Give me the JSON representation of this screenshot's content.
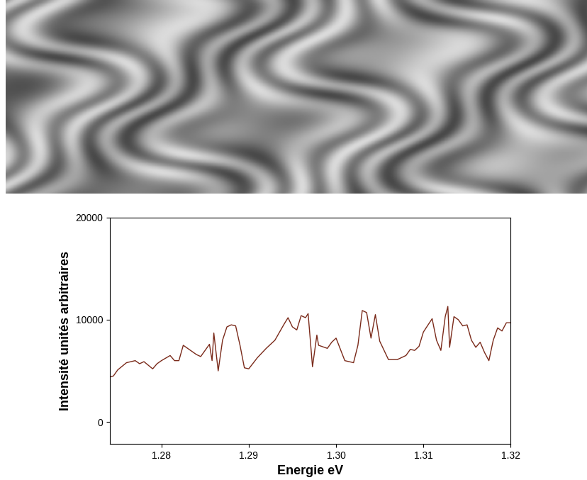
{
  "chart_data": {
    "type": "line",
    "x_label": "Energie eV",
    "y_label": "Intensité unités arbitraires",
    "color": "#7a2a1a",
    "x": [
      1.2741,
      1.2745,
      1.275,
      1.276,
      1.277,
      1.2775,
      1.278,
      1.279,
      1.2795,
      1.28,
      1.281,
      1.2815,
      1.282,
      1.2825,
      1.283,
      1.284,
      1.2845,
      1.285,
      1.2855,
      1.2858,
      1.286,
      1.2865,
      1.287,
      1.2875,
      1.288,
      1.2885,
      1.289,
      1.2895,
      1.29,
      1.291,
      1.292,
      1.293,
      1.294,
      1.2945,
      1.295,
      1.2955,
      1.296,
      1.2965,
      1.2968,
      1.2973,
      1.2978,
      1.298,
      1.299,
      1.2995,
      1.3,
      1.3005,
      1.301,
      1.302,
      1.3025,
      1.303,
      1.3035,
      1.304,
      1.3045,
      1.305,
      1.3055,
      1.306,
      1.307,
      1.308,
      1.3085,
      1.309,
      1.3095,
      1.31,
      1.311,
      1.3115,
      1.312,
      1.3125,
      1.3128,
      1.313,
      1.3135,
      1.314,
      1.3145,
      1.315,
      1.3155,
      1.316,
      1.3165,
      1.317,
      1.3175,
      1.318,
      1.3185,
      1.319,
      1.3195,
      1.32
    ],
    "values": [
      4400,
      4500,
      5100,
      5800,
      6000,
      5700,
      5900,
      5200,
      5700,
      6000,
      6500,
      6000,
      6000,
      7500,
      7200,
      6600,
      6400,
      7000,
      7600,
      6000,
      8700,
      5000,
      8000,
      9300,
      9500,
      9400,
      7500,
      5300,
      5200,
      6300,
      7200,
      8000,
      9500,
      10200,
      9300,
      9000,
      10400,
      10200,
      10600,
      5400,
      8500,
      7500,
      7200,
      7800,
      8200,
      7100,
      6000,
      5800,
      7500,
      10900,
      10700,
      8200,
      10500,
      7900,
      7000,
      6100,
      6100,
      6500,
      7100,
      7000,
      7400,
      8800,
      10100,
      8000,
      7000,
      10300,
      11300,
      7300,
      10300,
      10000,
      9400,
      9500,
      8000,
      7300,
      7800,
      6800,
      6000,
      8000,
      9200,
      8900,
      9700,
      9700
    ],
    "xlim": [
      1.2741,
      1.32
    ],
    "xticks": [
      1.28,
      1.29,
      {
        "value": 1.3,
        "label": "1.30"
      },
      1.31,
      1.32
    ],
    "ylim": [
      -2150,
      20000
    ],
    "yticks": [
      0,
      10000,
      20000
    ]
  }
}
